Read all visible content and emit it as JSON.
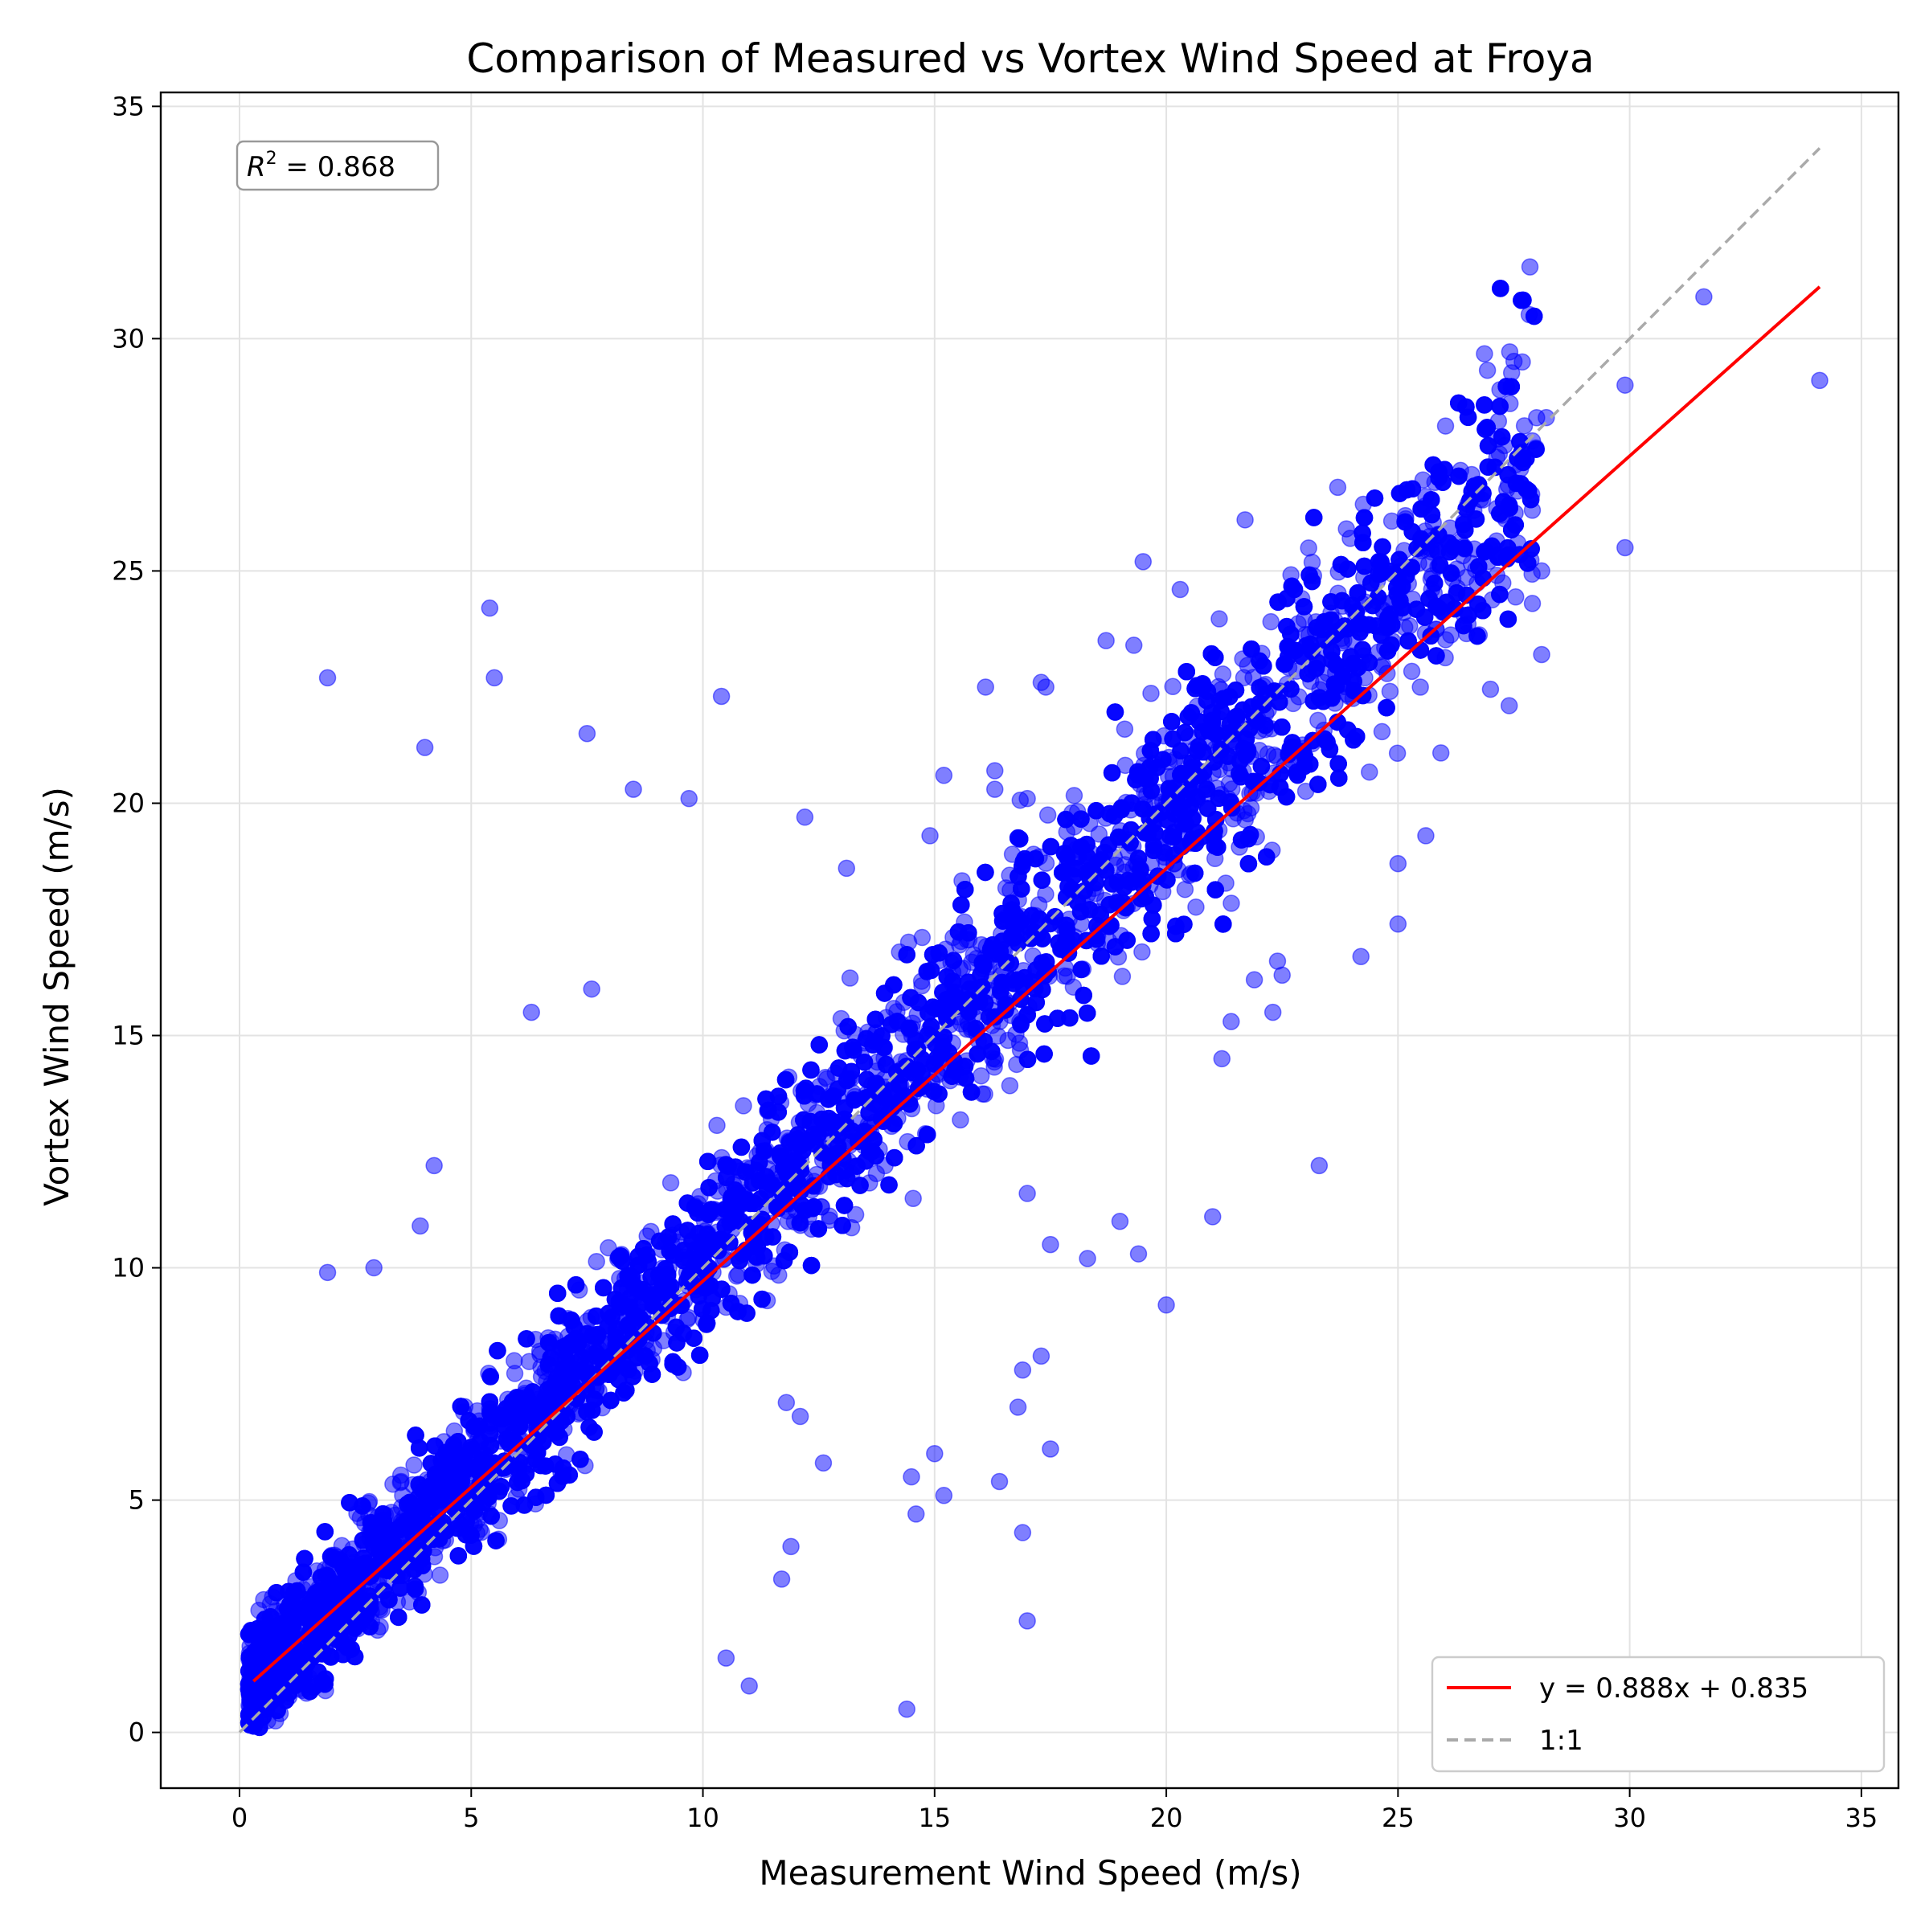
{
  "chart_data": {
    "type": "scatter",
    "title": "Comparison of Measured vs Vortex Wind Speed at Froya",
    "xlabel": "Measurement Wind Speed (m/s)",
    "ylabel": "Vortex Wind Speed (m/s)",
    "xlim": [
      -1.7,
      35.8
    ],
    "ylim": [
      -1.2,
      35.3
    ],
    "xticks": [
      0,
      5,
      10,
      15,
      20,
      25,
      30,
      35
    ],
    "yticks": [
      0,
      5,
      10,
      15,
      20,
      25,
      30,
      35
    ],
    "grid": true,
    "annotation": {
      "prefix": "R",
      "superscript": "2",
      "text": " = 0.868"
    },
    "legend": {
      "placement": "lower-right"
    },
    "series": [
      {
        "name": "",
        "kind": "scatter",
        "color": "#0000ff",
        "alpha": 0.5,
        "outliers": [
          [
            1.9,
            22.7
          ],
          [
            5.4,
            24.2
          ],
          [
            5.5,
            22.7
          ],
          [
            4.0,
            21.2
          ],
          [
            7.5,
            21.5
          ],
          [
            8.5,
            20.3
          ],
          [
            9.7,
            20.1
          ],
          [
            10.4,
            22.3
          ],
          [
            12.2,
            19.7
          ],
          [
            6.3,
            15.5
          ],
          [
            7.6,
            16.0
          ],
          [
            4.2,
            12.2
          ],
          [
            1.9,
            9.9
          ],
          [
            2.9,
            10.0
          ],
          [
            3.9,
            10.9
          ],
          [
            14.4,
            0.5
          ],
          [
            16.9,
            4.3
          ],
          [
            17.0,
            2.4
          ],
          [
            16.9,
            7.8
          ],
          [
            17.3,
            8.1
          ],
          [
            17.5,
            6.1
          ],
          [
            16.8,
            7.0
          ],
          [
            16.4,
            5.4
          ],
          [
            14.5,
            5.5
          ],
          [
            14.6,
            4.7
          ],
          [
            15.0,
            6.0
          ],
          [
            15.2,
            5.1
          ],
          [
            12.6,
            5.8
          ],
          [
            11.8,
            7.1
          ],
          [
            12.1,
            6.8
          ],
          [
            10.5,
            1.6
          ],
          [
            11.0,
            1.0
          ],
          [
            11.7,
            3.3
          ],
          [
            11.9,
            4.0
          ],
          [
            20.0,
            9.2
          ],
          [
            21.0,
            11.1
          ],
          [
            23.3,
            12.2
          ],
          [
            19.0,
            11.0
          ],
          [
            18.3,
            10.2
          ],
          [
            19.4,
            10.3
          ],
          [
            17.5,
            10.5
          ],
          [
            17.0,
            11.6
          ],
          [
            31.6,
            30.9
          ],
          [
            34.1,
            29.1
          ],
          [
            29.9,
            29.0
          ],
          [
            29.9,
            25.5
          ],
          [
            28.2,
            28.3
          ],
          [
            27.2,
            28.9
          ],
          [
            27.3,
            27.7
          ],
          [
            23.7,
            26.8
          ],
          [
            25.6,
            26.6
          ],
          [
            21.7,
            26.1
          ],
          [
            19.5,
            25.2
          ],
          [
            20.3,
            24.6
          ],
          [
            27.4,
            22.1
          ],
          [
            28.1,
            23.2
          ],
          [
            28.1,
            25.0
          ],
          [
            27.9,
            24.3
          ],
          [
            25.0,
            17.4
          ],
          [
            25.0,
            18.7
          ],
          [
            25.6,
            19.3
          ],
          [
            24.2,
            16.7
          ],
          [
            22.3,
            15.5
          ],
          [
            22.5,
            16.3
          ],
          [
            21.4,
            15.3
          ],
          [
            21.9,
            16.2
          ],
          [
            21.2,
            14.5
          ],
          [
            22.4,
            16.6
          ],
          [
            16.1,
            22.5
          ],
          [
            17.3,
            22.6
          ],
          [
            17.4,
            22.5
          ],
          [
            18.7,
            23.5
          ],
          [
            19.3,
            23.4
          ],
          [
            15.2,
            20.6
          ],
          [
            16.3,
            20.7
          ],
          [
            16.3,
            20.3
          ],
          [
            17.0,
            20.1
          ],
          [
            13.1,
            18.6
          ],
          [
            14.9,
            19.3
          ]
        ],
        "bands": [
          {
            "x": [
              0.2,
              35.0
            ],
            "y_min_intercept": -2.6,
            "y_max_intercept": 4.2,
            "slope": 0.95,
            "ymin": 0.1,
            "xmax": 28.0,
            "count": 9000
          }
        ]
      },
      {
        "name": "y = 0.888x + 0.835",
        "kind": "line",
        "color": "#ff0000",
        "slope": 0.888,
        "intercept": 0.835,
        "x": [
          0.3,
          34.1
        ]
      },
      {
        "name": "1:1",
        "kind": "line",
        "color": "#aaaaaa",
        "dashed": true,
        "x": [
          0.0,
          34.1
        ],
        "y": [
          0.0,
          34.1
        ]
      }
    ]
  }
}
